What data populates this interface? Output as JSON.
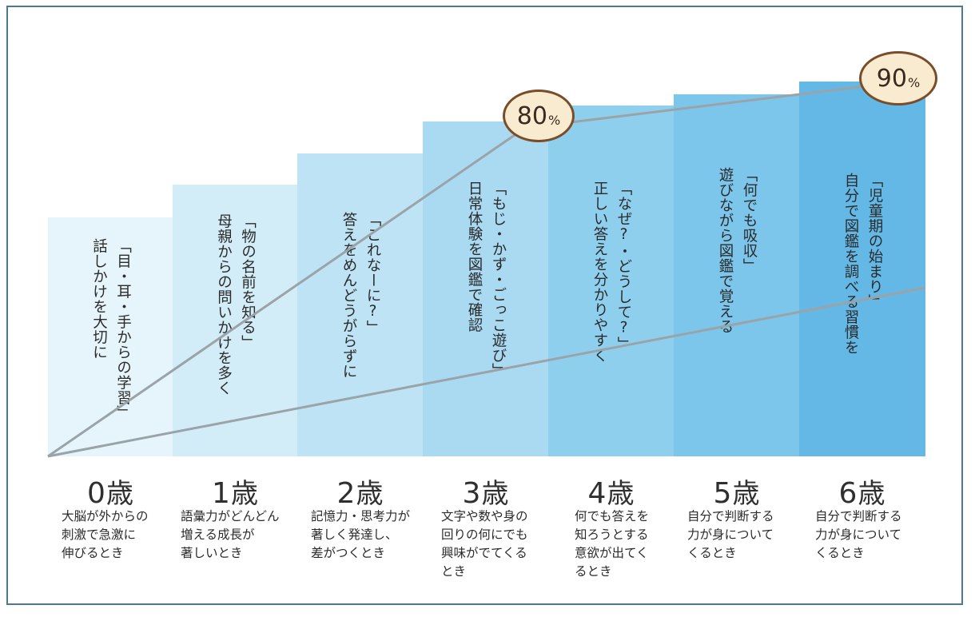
{
  "stages": [
    {
      "age_num": "0",
      "age_unit": "歳",
      "title": "「目・耳・手からの学習」\n話しかけを大切に",
      "desc": "大脳が外からの\n刺激で急激に\n伸びるとき",
      "color": "#e6f4fb"
    },
    {
      "age_num": "1",
      "age_unit": "歳",
      "title": "「物の名前を知る」\n母親からの問いかけを多く",
      "desc": "語彙力がどんどん\n増える成長が\n著しいとき",
      "color": "#d2ecf8"
    },
    {
      "age_num": "2",
      "age_unit": "歳",
      "title": "「これなーに?」\n答えをめんどうがらずに",
      "desc": "記憶力・思考力が\n著しく発達し、\n差がつくとき",
      "color": "#bde3f4"
    },
    {
      "age_num": "3",
      "age_unit": "歳",
      "title": "「もじ・かず・ごっこ遊び」\n日常体験を図鑑で確認",
      "desc": "文字や数や身の\n回りの何にでも\n興味がでてくる\nとき",
      "color": "#a9daf2"
    },
    {
      "age_num": "4",
      "age_unit": "歳",
      "title": "「なぜ?・どうして?」\n正しい答えを分かりやすく",
      "desc": "何でも答えを\n知ろうとする\n意欲が出てく\nるとき",
      "color": "#8fcfee"
    },
    {
      "age_num": "5",
      "age_unit": "歳",
      "title": "「何でも吸収」\n遊びながら図鑑で覚える",
      "desc": "自分で判断する\n力が身について\nくるとき",
      "color": "#7cc6ec"
    },
    {
      "age_num": "6",
      "age_unit": "歳",
      "title": "「児童期の始まり」\n自分で図鑑を調べる習慣を",
      "desc": "自分で判断する\n力が身について\nくるとき",
      "color": "#63b8e6"
    }
  ],
  "badges": [
    {
      "num": "80",
      "sym": "%"
    },
    {
      "num": "90",
      "sym": "%"
    }
  ],
  "colors": {
    "frame": "#4a7a93",
    "line": "#9aa3a8",
    "badge_fill": "#f8ebcf",
    "badge_border": "#7a4d2a"
  }
}
